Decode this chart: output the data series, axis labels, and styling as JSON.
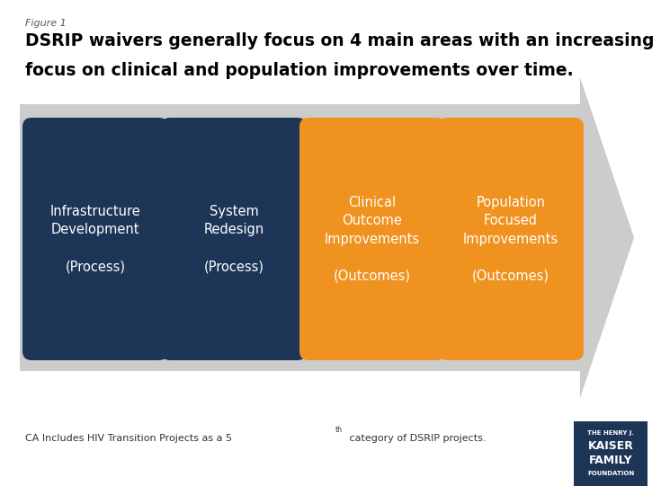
{
  "figure1_label": "Figure 1",
  "title_line1": "DSRIP waivers generally focus on 4 main areas with an increasing",
  "title_line2": "focus on clinical and population improvements over time.",
  "boxes": [
    {
      "label": "Infrastructure\nDevelopment\n\n(Process)",
      "color": "#1d3557"
    },
    {
      "label": "System\nRedesign\n\n(Process)",
      "color": "#1d3557"
    },
    {
      "label": "Clinical\nOutcome\nImprovements\n\n(Outcomes)",
      "color": "#f0921f"
    },
    {
      "label": "Population\nFocused\nImprovements\n\n(Outcomes)",
      "color": "#f0921f"
    }
  ],
  "arrow_color": "#cccccc",
  "text_color_white": "#ffffff",
  "footnote_main": "CA Includes HIV Transition Projects as a 5",
  "footnote_super": "th",
  "footnote_end": " category of DSRIP projects.",
  "bg_color": "#ffffff",
  "title_color": "#000000",
  "figure_label_color": "#555555",
  "logo_bg": "#1d3557",
  "logo_lines": [
    "THE HENRY J.",
    "KAISER",
    "FAMILY",
    "FOUNDATION"
  ]
}
